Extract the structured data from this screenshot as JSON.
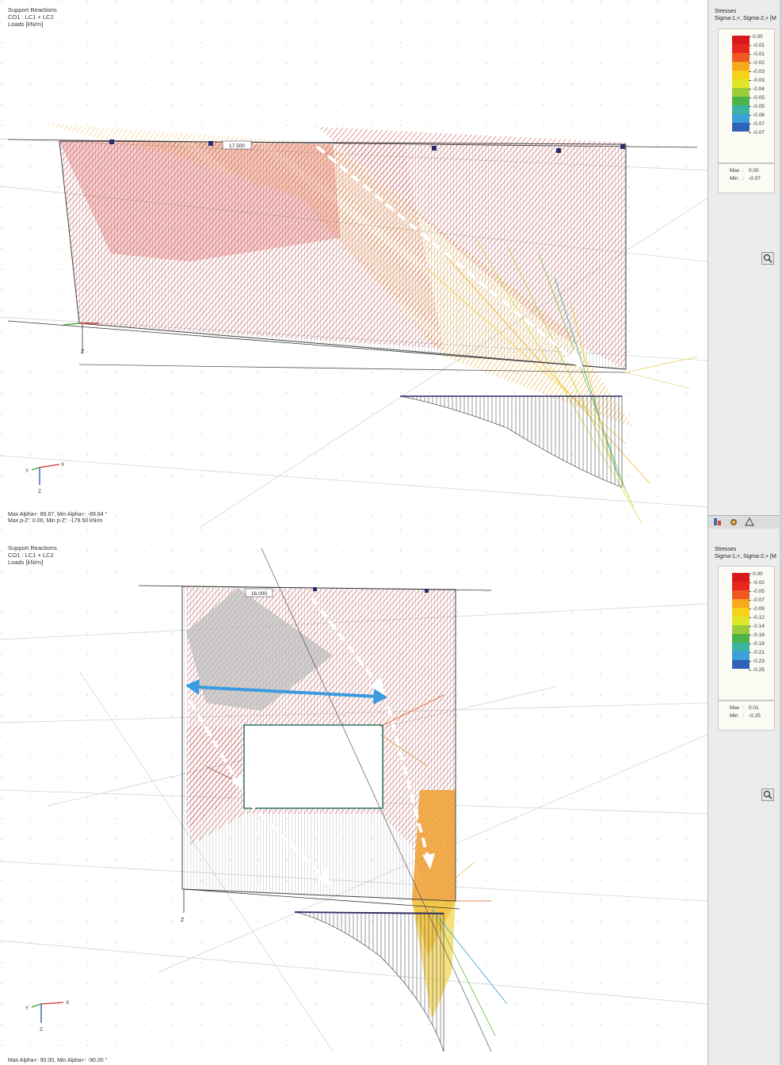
{
  "top_view": {
    "header": {
      "line1": "Support Reactions",
      "line2": "CO1 : LC1 + LC2",
      "line3": "Loads [kN/m]"
    },
    "dimension_label": "17.500",
    "axis_label_z": "Z",
    "triad": {
      "x": "X",
      "y": "Y",
      "z": "Z"
    },
    "status": {
      "line1": "Max Alpha+: 89.87, Min Alpha+: -89.84 °",
      "line2": "Max p-Z': 0.00, Min p-Z': -179.50 kN/m"
    },
    "legend": {
      "title": "Stresses",
      "subtitle": "Sigma-1,+, Sigma-2,+ [M",
      "values": [
        "0.00",
        "-0.01",
        "-0.01",
        "-0.02",
        "-0.03",
        "-0.03",
        "-0.04",
        "-0.05",
        "-0.05",
        "-0.06",
        "-0.07",
        "-0.07"
      ],
      "colors": [
        "#d7191c",
        "#e8271f",
        "#f05a22",
        "#f7a81b",
        "#f6d21a",
        "#e0e62a",
        "#9ccc3b",
        "#4cb24a",
        "#3bb3a1",
        "#3d9fd9",
        "#2d62b8",
        "#1c2f8a"
      ],
      "max_label": "Max",
      "max_value": "0.00",
      "min_label": "Min",
      "min_value": "-0.07"
    },
    "zoom_icon": "magnifier-icon",
    "toolbar_icons": [
      "data-icon",
      "results-icon",
      "display-icon"
    ]
  },
  "bottom_view": {
    "header": {
      "line1": "Support Reactions",
      "line2": "CO1 : LC1 + LC2",
      "line3": "Loads [kN/m]"
    },
    "dimension_label": "16.000",
    "axis_label_z": "Z",
    "triad": {
      "x": "X",
      "y": "Y",
      "z": "Z"
    },
    "status": {
      "line1": "Max Alpha+: 90.00, Min Alpha+: -90.00 °"
    },
    "legend": {
      "title": "Stresses",
      "subtitle": "Sigma-1,+, Sigma-2,+ [M",
      "values": [
        "0.00",
        "-0.02",
        "-0.05",
        "-0.07",
        "-0.09",
        "-0.12",
        "-0.14",
        "-0.16",
        "-0.18",
        "-0.21",
        "-0.23",
        "-0.25"
      ],
      "colors": [
        "#d7191c",
        "#e8271f",
        "#f05a22",
        "#f7a81b",
        "#f6d21a",
        "#e0e62a",
        "#9ccc3b",
        "#4cb24a",
        "#3bb3a1",
        "#3d9fd9",
        "#2d62b8",
        "#1c2f8a"
      ],
      "max_label": "Max",
      "max_value": "0.01",
      "min_label": "Min",
      "min_value": "-0.25"
    },
    "zoom_icon": "magnifier-icon"
  }
}
